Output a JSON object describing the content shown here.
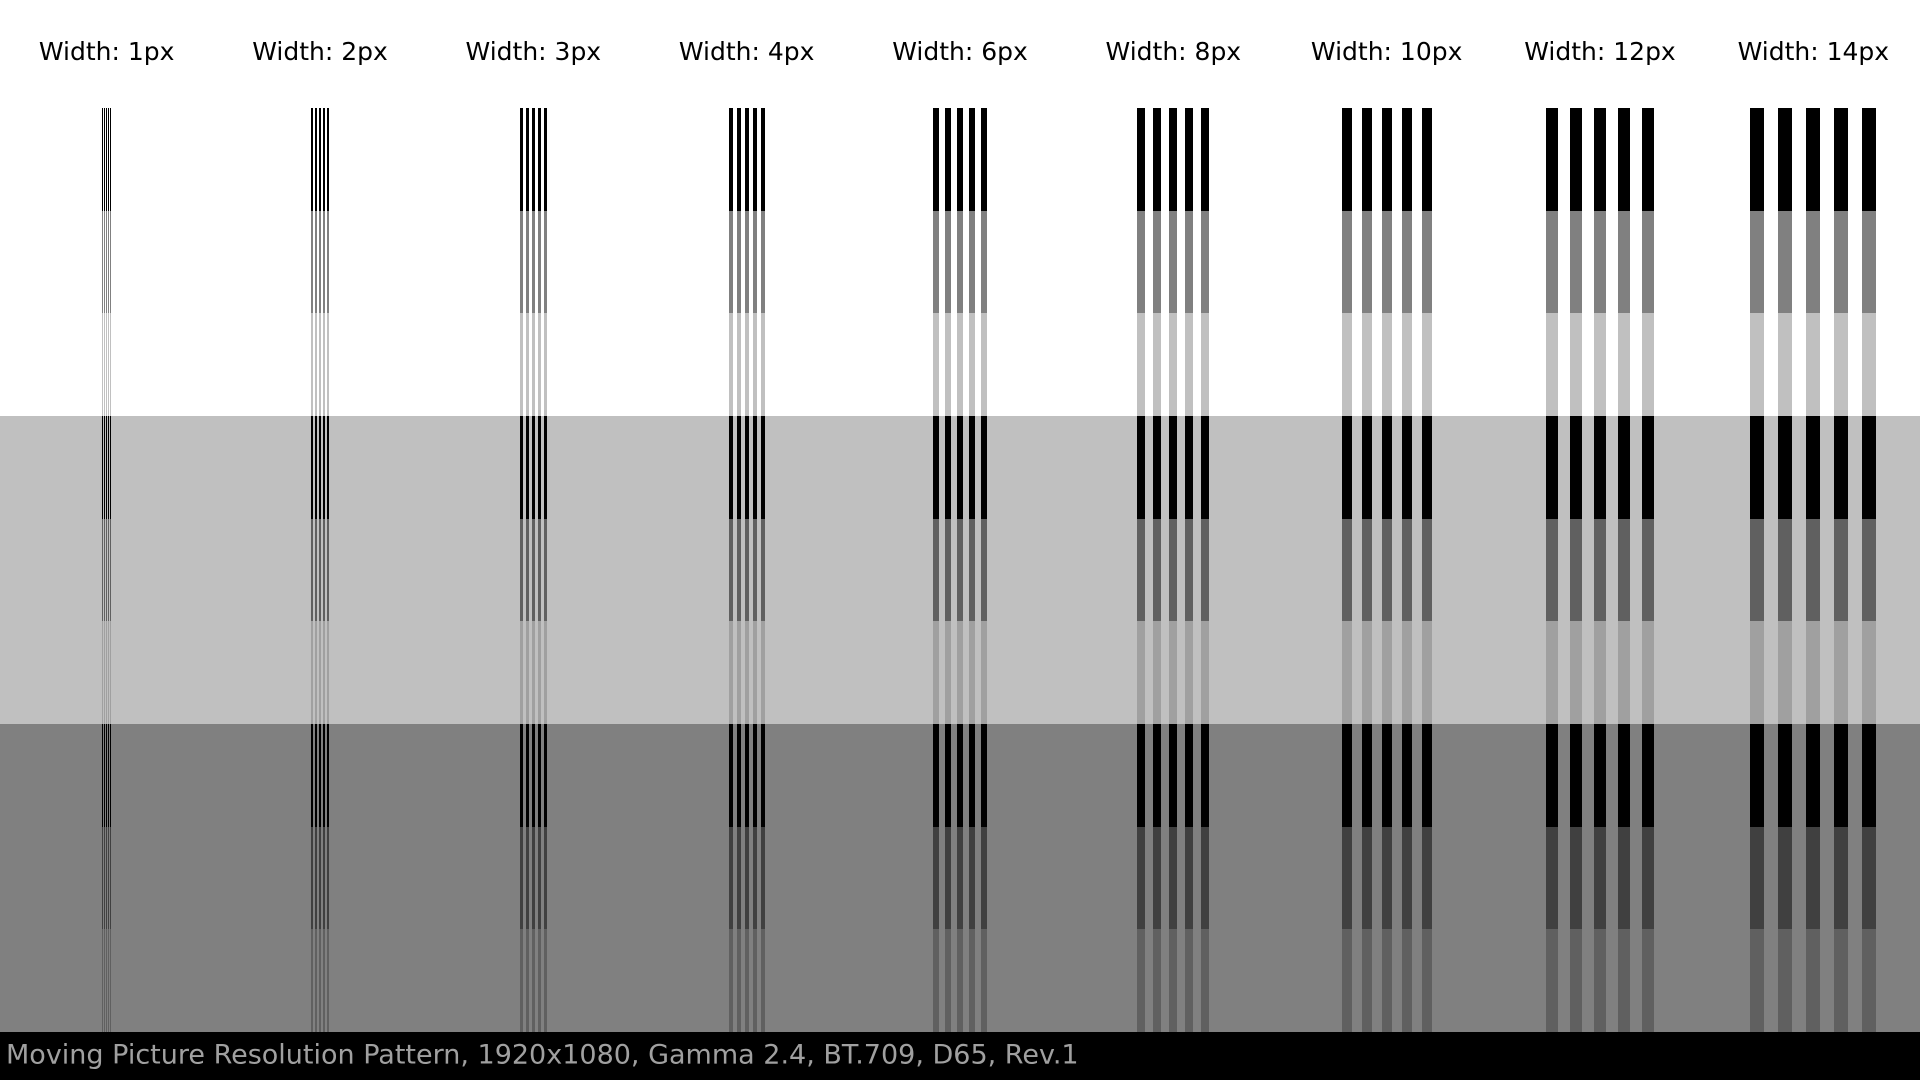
{
  "columns": [
    {
      "label": "Width: 1px",
      "width": 1
    },
    {
      "label": "Width: 2px",
      "width": 2
    },
    {
      "label": "Width: 3px",
      "width": 3
    },
    {
      "label": "Width: 4px",
      "width": 4
    },
    {
      "label": "Width: 6px",
      "width": 6
    },
    {
      "label": "Width: 8px",
      "width": 8
    },
    {
      "label": "Width: 10px",
      "width": 10
    },
    {
      "label": "Width: 12px",
      "width": 12
    },
    {
      "label": "Width: 14px",
      "width": 14
    }
  ],
  "footer": "Moving Picture Resolution Pattern, 1920x1080, Gamma 2.4, BT.709, D65, Rev.1"
}
